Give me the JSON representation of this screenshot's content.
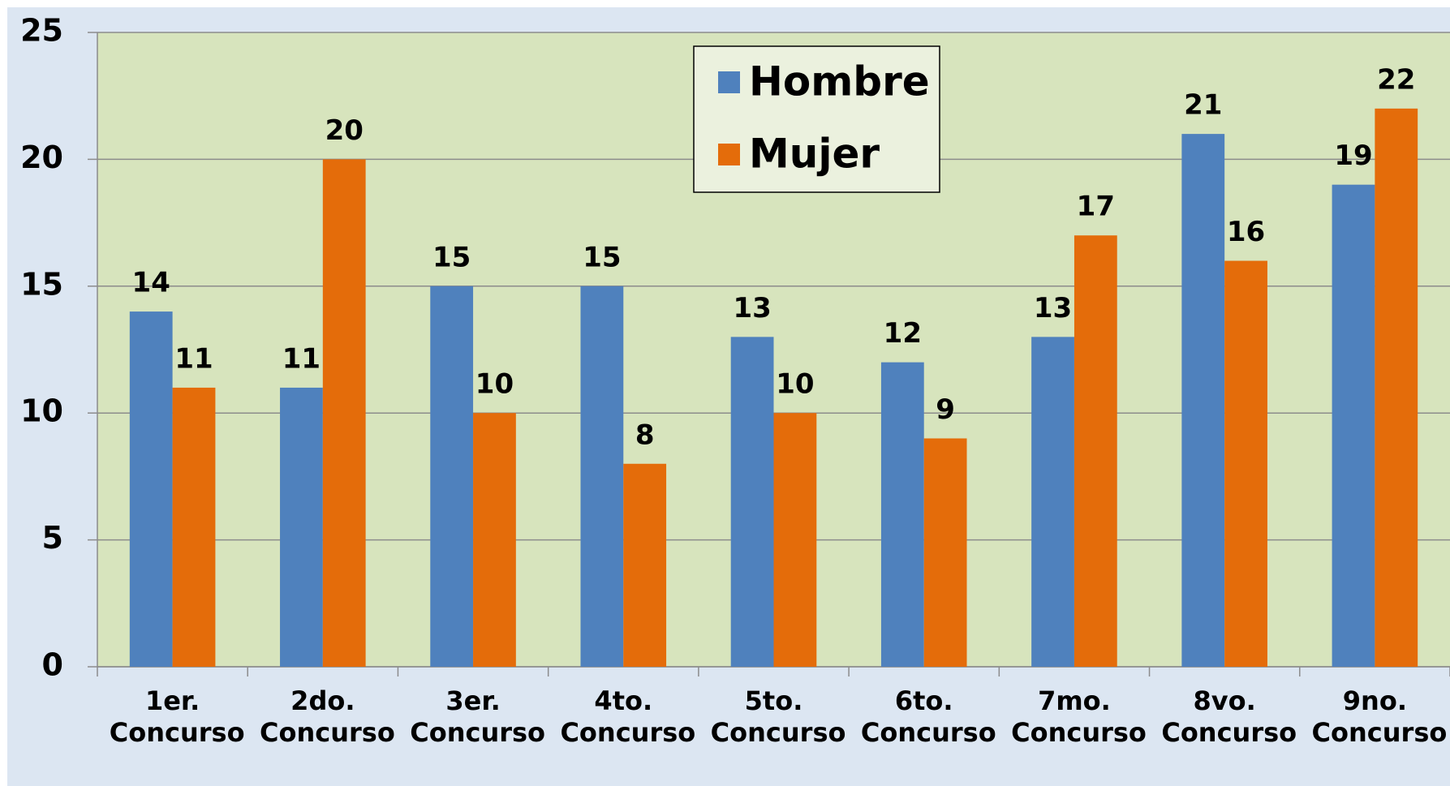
{
  "chart_data": {
    "type": "bar",
    "categories": [
      "1er. Concurso",
      "2do. Concurso",
      "3er. Concurso",
      "4to. Concurso",
      "5to. Concurso",
      "6to. Concurso",
      "7mo. Concurso",
      "8vo. Concurso",
      "9no. Concurso"
    ],
    "series": [
      {
        "name": "Hombre",
        "color": "#4f81bd",
        "values": [
          14,
          11,
          15,
          15,
          13,
          12,
          13,
          21,
          19
        ]
      },
      {
        "name": "Mujer",
        "color": "#e46c0a",
        "values": [
          11,
          20,
          10,
          8,
          10,
          9,
          17,
          16,
          22
        ]
      }
    ],
    "ylim": [
      0,
      25
    ],
    "yticks": [
      0,
      5,
      10,
      15,
      20,
      25
    ],
    "grid": true,
    "legend": "top"
  }
}
